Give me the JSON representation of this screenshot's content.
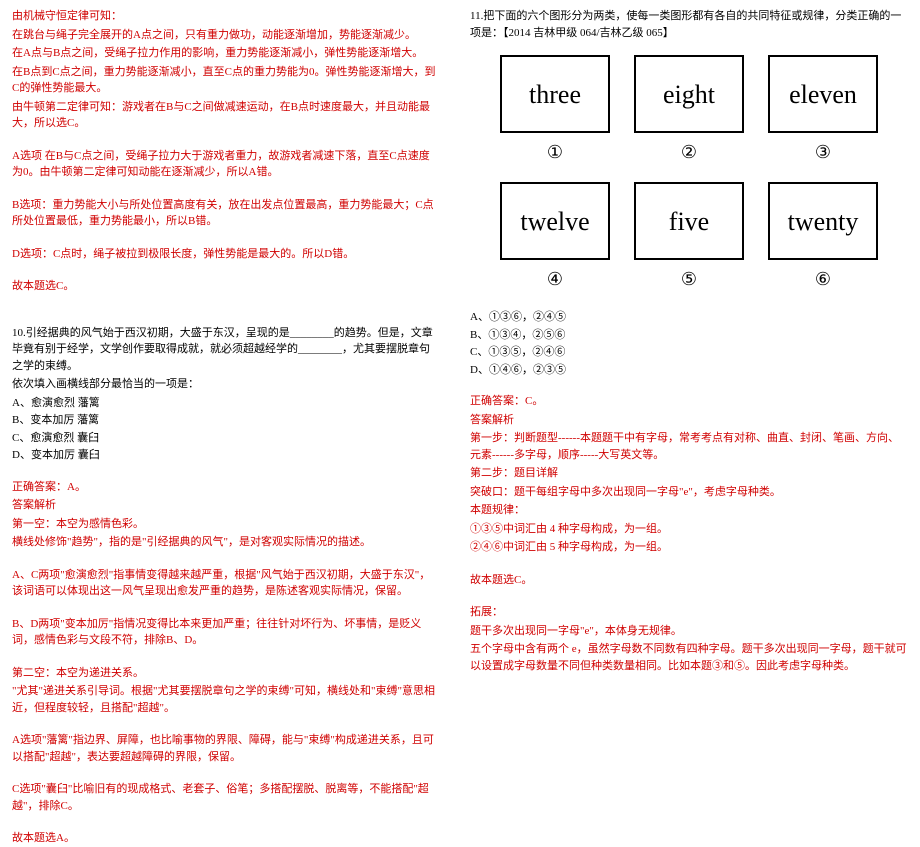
{
  "left": {
    "physics": {
      "l1": "由机械守恒定律可知：",
      "l2": "在跳台与绳子完全展开的A点之间，只有重力做功，动能逐渐增加，势能逐渐减少。",
      "l3": "在A点与B点之间，受绳子拉力作用的影响，重力势能逐渐减小，弹性势能逐渐增大。",
      "l4": "在B点到C点之间，重力势能逐渐减小，直至C点的重力势能为0。弹性势能逐渐增大，到C的弹性势能最大。",
      "l5": "由牛顿第二定律可知：游戏者在B与C之间做减速运动，在B点时速度最大，并且动能最大，所以选C。",
      "a1": "A选项  在B与C点之间，受绳子拉力大于游戏者重力，故游戏者减速下落，直至C点速度为0。由牛顿第二定律可知动能在逐渐减少，所以A错。",
      "b1": "B选项：重力势能大小与所处位置高度有关，放在出发点位置最高，重力势能最大；C点所处位置最低，重力势能最小，所以B错。",
      "d1": "D选项：C点时，绳子被拉到极限长度，弹性势能是最大的。所以D错。",
      "end": "故本题选C。"
    },
    "q10": {
      "stem1": "10.引经据典的风气始于西汉初期，大盛于东汉，呈现的是________的趋势。但是，文章毕竟有别于经学，文学创作要取得成就，就必须超越经学的________，尤其要摆脱章句之学的束缚。",
      "stem2": "依次填入画横线部分最恰当的一项是：",
      "a": "A、愈演愈烈  藩篱",
      "b": "B、变本加厉  藩篱",
      "c": "C、愈演愈烈  囊臼",
      "d": "D、变本加厉  囊臼",
      "ans": "正确答案：A。",
      "exp_h": "答案解析",
      "e1": "第一空：本空为感情色彩。",
      "e2": "横线处修饰\"趋势\"，指的是\"引经据典的风气\"，是对客观实际情况的描述。",
      "e3": "A、C两项\"愈演愈烈\"指事情变得越来越严重，根据\"风气始于西汉初期，大盛于东汉\"，该词语可以体现出这一风气呈现出愈发严重的趋势，是陈述客观实际情况，保留。",
      "e4": "B、D两项\"变本加厉\"指情况变得比本来更加严重；往往针对坏行为、坏事情，是贬义词，感情色彩与文段不符，排除B、D。",
      "e5": "第二空：本空为递进关系。",
      "e6": "\"尤其\"递进关系引导词。根据\"尤其要摆脱章句之学的束缚\"可知，横线处和\"束缚\"意思相近，但程度较轻，且搭配\"超越\"。",
      "e7": "A选项\"藩篱\"指边界、屏障，也比喻事物的界限、障碍，能与\"束缚\"构成递进关系，且可以搭配\"超越\"，表达要超越障碍的界限，保留。",
      "e8": "C选项\"囊臼\"比喻旧有的现成格式、老套子、俗笔；多搭配摆脱、脱离等，不能搭配\"超越\"，排除C。",
      "end": "故本题选A。"
    }
  },
  "right": {
    "q11": {
      "stem": "11.把下面的六个图形分为两类，使每一类图形都有各自的共同特征或规律，分类正确的一项是：【2014 吉林甲级 064/吉林乙级 065】",
      "boxes": [
        "three",
        "eight",
        "eleven",
        "twelve",
        "five",
        "twenty"
      ],
      "nums": [
        "①",
        "②",
        "③",
        "④",
        "⑤",
        "⑥"
      ],
      "a": "A、①③⑥，②④⑤",
      "b": "B、①③④，②⑤⑥",
      "c": "C、①③⑤，②④⑥",
      "d": "D、①④⑥，②③⑤",
      "ans": "正确答案：C。",
      "exp_h": "答案解析",
      "s1": "第一步：判断题型------本题题干中有字母，常考考点有对称、曲直、封闭、笔画、方向、元素------多字母，顺序-----大写英文等。",
      "s2": "第二步：题目详解",
      "s3": "突破口：题干每组字母中多次出现同一字母\"e\"，考虑字母种类。",
      "s4": "本题规律：",
      "r1": "①③⑤中词汇由 4 种字母构成，为一组。",
      "r2": "②④⑥中词汇由 5 种字母构成，为一组。",
      "end": "故本题选C。",
      "ext_h": "拓展：",
      "ext1": "题干多次出现同一字母\"e\"，本体身无规律。",
      "ext2": "五个字母中含有两个 e，虽然字母数不同数有四种字母。题干多次出现同一字母，题干就可以设置成字母数量不同但种类数量相同。比如本题③和⑤。因此考虑字母种类。"
    }
  },
  "colors": {
    "red": "#d00000",
    "black": "#000000"
  }
}
